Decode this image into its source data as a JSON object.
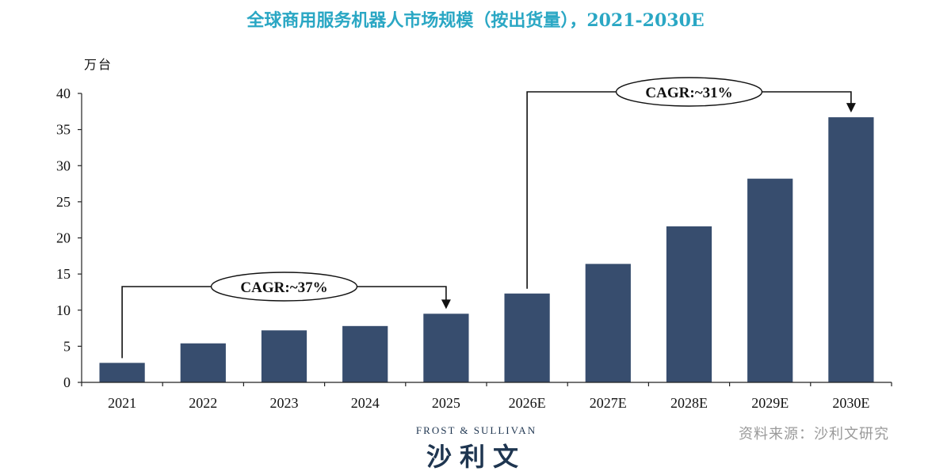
{
  "title": "全球商用服务机器人市场规模（按出货量），2021-2030E",
  "unit_label": "万台",
  "source": "资料来源：沙利文研究",
  "logo": {
    "small": "FROST & SULLIVAN",
    "big": "沙利文"
  },
  "colors": {
    "bar": "#374d6e",
    "title": "#2aa7c4"
  },
  "chart_data": {
    "type": "bar",
    "title": "全球商用服务机器人市场规模（按出货量），2021-2030E",
    "ylabel": "万台",
    "categories": [
      "2021",
      "2022",
      "2023",
      "2024",
      "2025",
      "2026E",
      "2027E",
      "2028E",
      "2029E",
      "2030E"
    ],
    "values": [
      2.7,
      5.4,
      7.2,
      7.8,
      9.5,
      12.3,
      16.4,
      21.6,
      28.2,
      36.7
    ],
    "ylim": [
      0,
      40
    ],
    "yticks": [
      0,
      5,
      10,
      15,
      20,
      25,
      30,
      35,
      40
    ],
    "grid": false,
    "annotations": [
      {
        "text": "CAGR:~37%",
        "from": "2021",
        "to": "2025"
      },
      {
        "text": "CAGR:~31%",
        "from": "2026E",
        "to": "2030E"
      }
    ]
  }
}
